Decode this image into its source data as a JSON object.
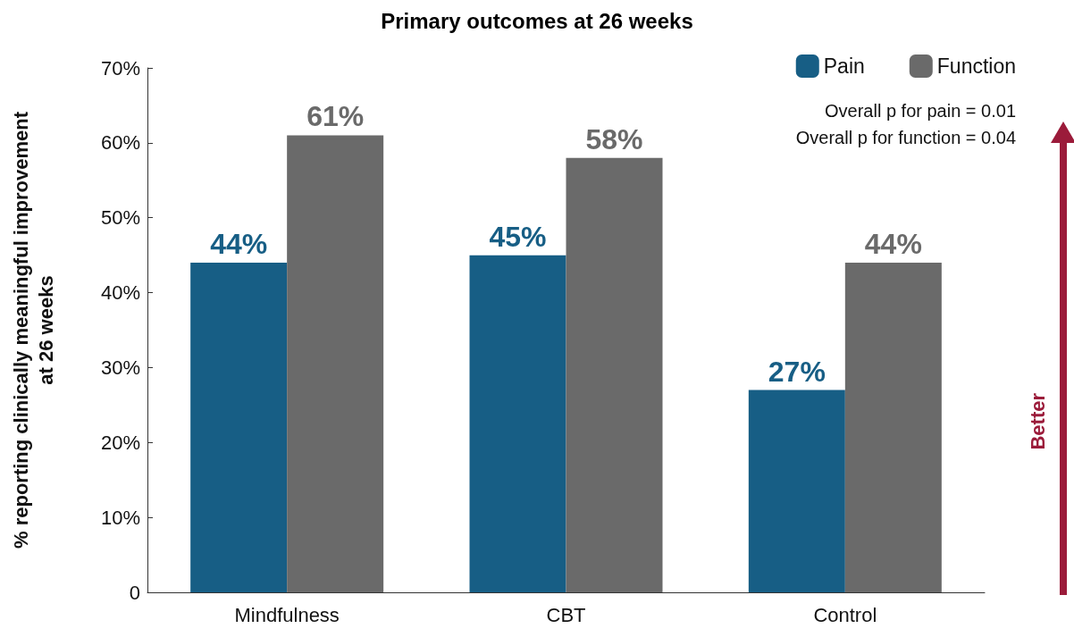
{
  "chart_data": {
    "type": "bar",
    "title": "Primary outcomes at 26 weeks",
    "ylabel": "% reporting clinically meaningful improvement\nat 26 weeks",
    "categories": [
      "Mindfulness",
      "CBT",
      "Control"
    ],
    "series": [
      {
        "name": "Pain",
        "color": "#175e85",
        "values": [
          44,
          45,
          27
        ],
        "value_labels": [
          "44%",
          "45%",
          "27%"
        ]
      },
      {
        "name": "Function",
        "color": "#6a6a6a",
        "values": [
          61,
          58,
          44
        ],
        "value_labels": [
          "61%",
          "58%",
          "44%"
        ]
      }
    ],
    "ylim": [
      0,
      70
    ],
    "yticks": [
      0,
      {
        "value": 10,
        "label": "10%"
      },
      {
        "value": 20,
        "label": "20%"
      },
      {
        "value": 30,
        "label": "30%"
      },
      {
        "value": 40,
        "label": "40%"
      },
      {
        "value": 50,
        "label": "50%"
      },
      {
        "value": 60,
        "label": "60%"
      },
      {
        "value": 70,
        "label": "70%"
      }
    ],
    "grid": false,
    "legend": "top right",
    "annotations": [
      "Overall p for pain = 0.01",
      "Overall p for function = 0.04",
      "Better"
    ]
  }
}
